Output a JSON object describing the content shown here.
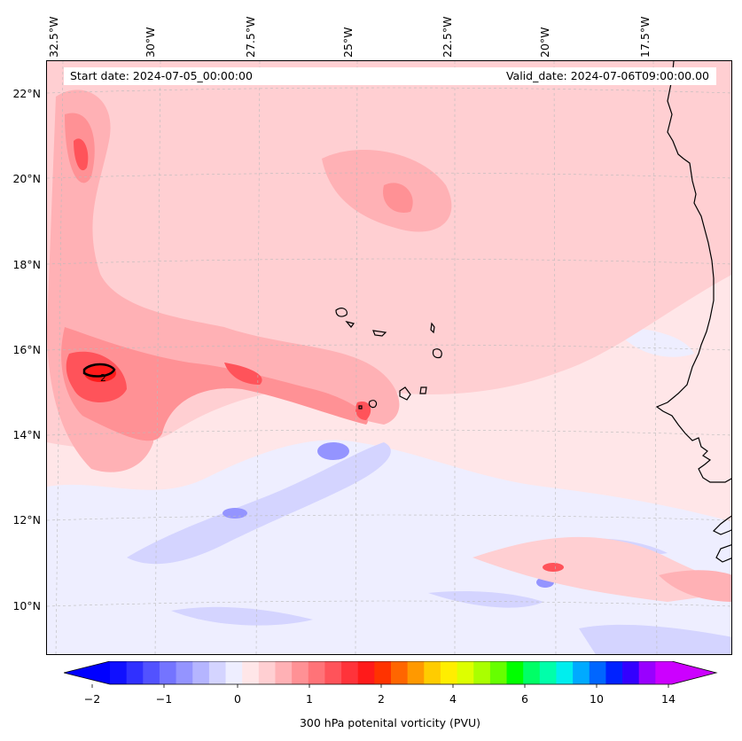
{
  "map": {
    "title_start": "Start date: 2024-07-05_00:00:00",
    "title_valid": "Valid_date: 2024-07-06T09:00:00.00",
    "lat_labels": [
      "22°N",
      "20°N",
      "18°N",
      "16°N",
      "14°N",
      "12°N",
      "10°N"
    ],
    "lon_labels": [
      "32.5°W",
      "30°W",
      "27.5°W",
      "25°W",
      "22.5°W",
      "20°W",
      "17.5°W"
    ],
    "contour_label": "2",
    "background_color": "#ffe6e8"
  },
  "colorbar": {
    "label": "300 hPa potenital vorticity (PVU)",
    "ticks": [
      "−2",
      "−1",
      "0",
      "1",
      "2",
      "4",
      "6",
      "10",
      "14"
    ],
    "colors": [
      "#1010ff",
      "#3030ff",
      "#5252ff",
      "#7474ff",
      "#9494ff",
      "#b5b5ff",
      "#d4d4ff",
      "#eeeeff",
      "#ffe6e8",
      "#ffcfd2",
      "#ffb1b5",
      "#ff9195",
      "#ff7378",
      "#ff535a",
      "#ff333a",
      "#ff1a1a",
      "#ff3300",
      "#ff6600",
      "#ff9900",
      "#ffcc00",
      "#ffee00",
      "#ddff00",
      "#aaff00",
      "#66ff00",
      "#00ff00",
      "#00ff66",
      "#00ffaa",
      "#00eeee",
      "#00aaff",
      "#0066ff",
      "#0022ff",
      "#3300ff",
      "#9900ff",
      "#cc00ff"
    ],
    "under_color": "#0000ff",
    "over_color": "#cc00ff"
  }
}
